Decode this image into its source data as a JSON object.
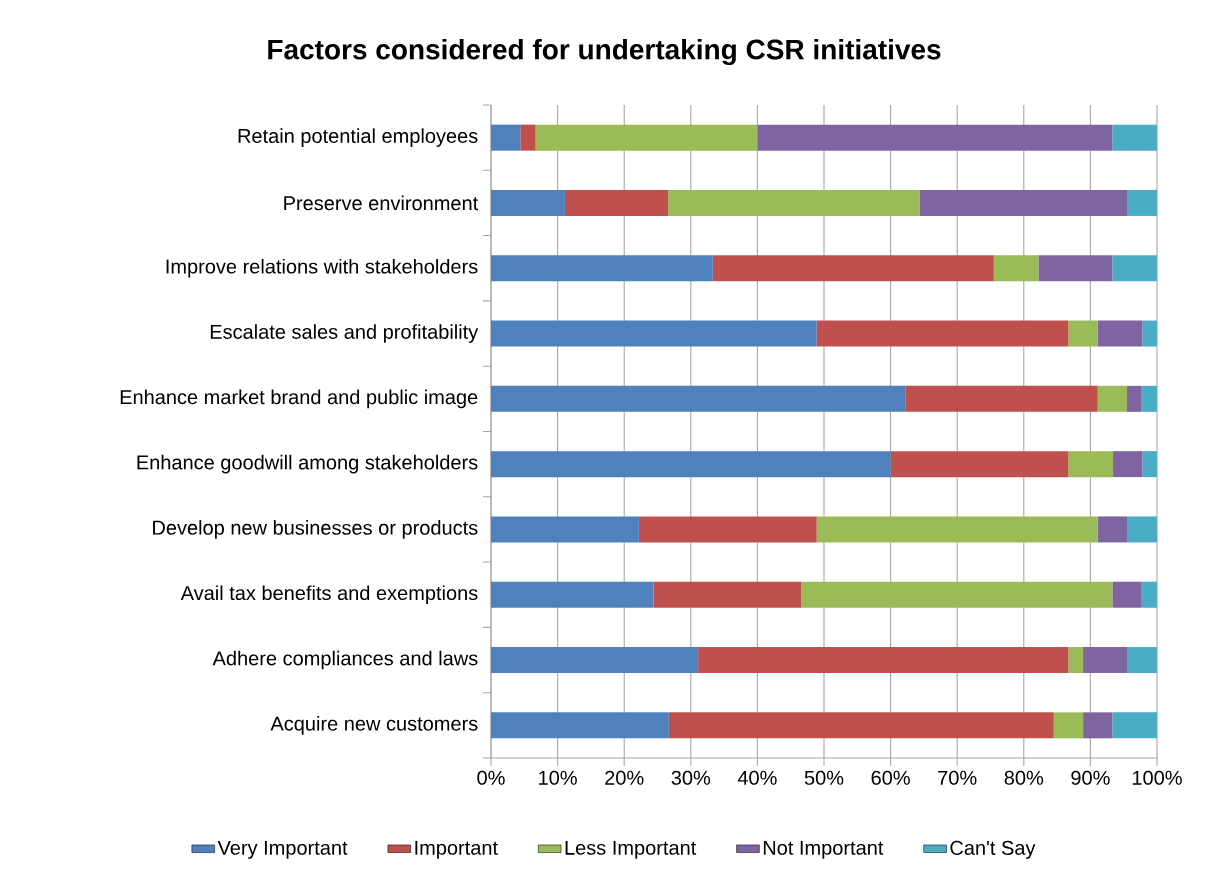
{
  "chart_data": {
    "type": "bar",
    "orientation": "horizontal",
    "stacked": true,
    "title": "Factors considered for undertaking CSR initiatives",
    "categories": [
      "Retain potential employees",
      "Preserve environment",
      "Improve relations with stakeholders",
      "Escalate sales and profitability",
      "Enhance market brand and public image",
      "Enhance goodwill among stakeholders",
      "Develop new businesses or products",
      "Avail tax benefits and exemptions",
      "Adhere compliances and laws",
      "Acquire new customers"
    ],
    "series": [
      {
        "name": "Very Important",
        "color": "#4f81bd",
        "values": [
          4.4,
          11.1,
          33.3,
          48.9,
          62.2,
          60,
          22.2,
          24.4,
          31.1,
          26.7
        ]
      },
      {
        "name": "Important",
        "color": "#c0504d",
        "values": [
          2.3,
          15.5,
          42.2,
          37.8,
          28.9,
          26.7,
          26.7,
          22.2,
          55.6,
          57.8
        ]
      },
      {
        "name": "Less Important",
        "color": "#9bbb59",
        "values": [
          33.3,
          37.8,
          6.7,
          4.4,
          4.4,
          6.7,
          42.2,
          46.7,
          2.2,
          4.4
        ]
      },
      {
        "name": "Not Important",
        "color": "#8064a2",
        "values": [
          53.3,
          31.2,
          11.1,
          6.7,
          2.2,
          4.4,
          4.4,
          4.4,
          6.7,
          4.4
        ]
      },
      {
        "name": "Can't Say",
        "color": "#4bacc6",
        "values": [
          6.7,
          4.4,
          6.7,
          2.2,
          2.3,
          2.2,
          4.5,
          2.3,
          4.4,
          6.7
        ]
      }
    ],
    "xlim": [
      0,
      100
    ],
    "xticks": [
      {
        "value": 0,
        "label": "0%"
      },
      {
        "value": 10,
        "label": "10%"
      },
      {
        "value": 20,
        "label": "20%"
      },
      {
        "value": 30,
        "label": "30%"
      },
      {
        "value": 40,
        "label": "40%"
      },
      {
        "value": 50,
        "label": "50%"
      },
      {
        "value": 60,
        "label": "60%"
      },
      {
        "value": 70,
        "label": "70%"
      },
      {
        "value": 80,
        "label": "80%"
      },
      {
        "value": 90,
        "label": "90%"
      },
      {
        "value": 100,
        "label": "100%"
      }
    ],
    "grid": "x",
    "legend": "bottom"
  }
}
